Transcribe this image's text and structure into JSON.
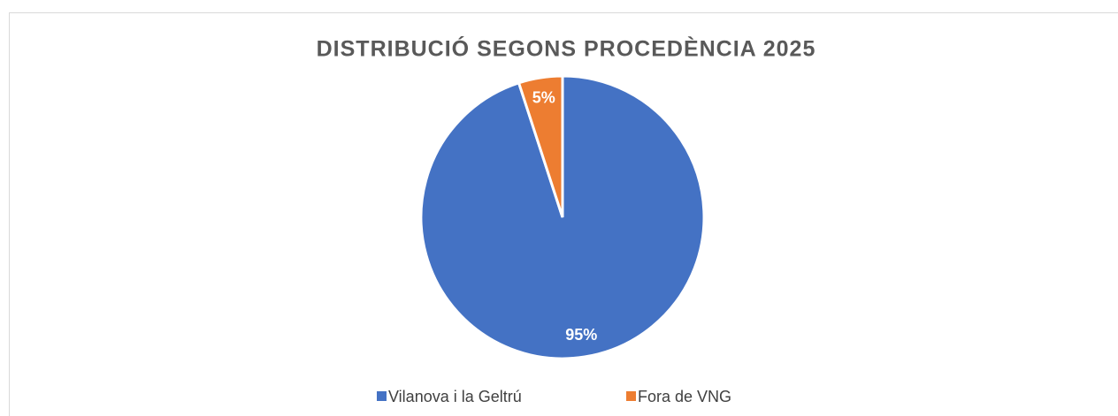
{
  "chart_data": {
    "type": "pie",
    "title": "DISTRIBUCIÓ SEGONS PROCEDÈNCIA 2025",
    "categories": [
      "Vilanova i la Geltrú",
      "Fora de VNG"
    ],
    "values": [
      95,
      5
    ],
    "value_labels": [
      "95%",
      "5%"
    ],
    "colors": [
      "#4472c4",
      "#ed7d31"
    ],
    "legend": "bottom"
  }
}
